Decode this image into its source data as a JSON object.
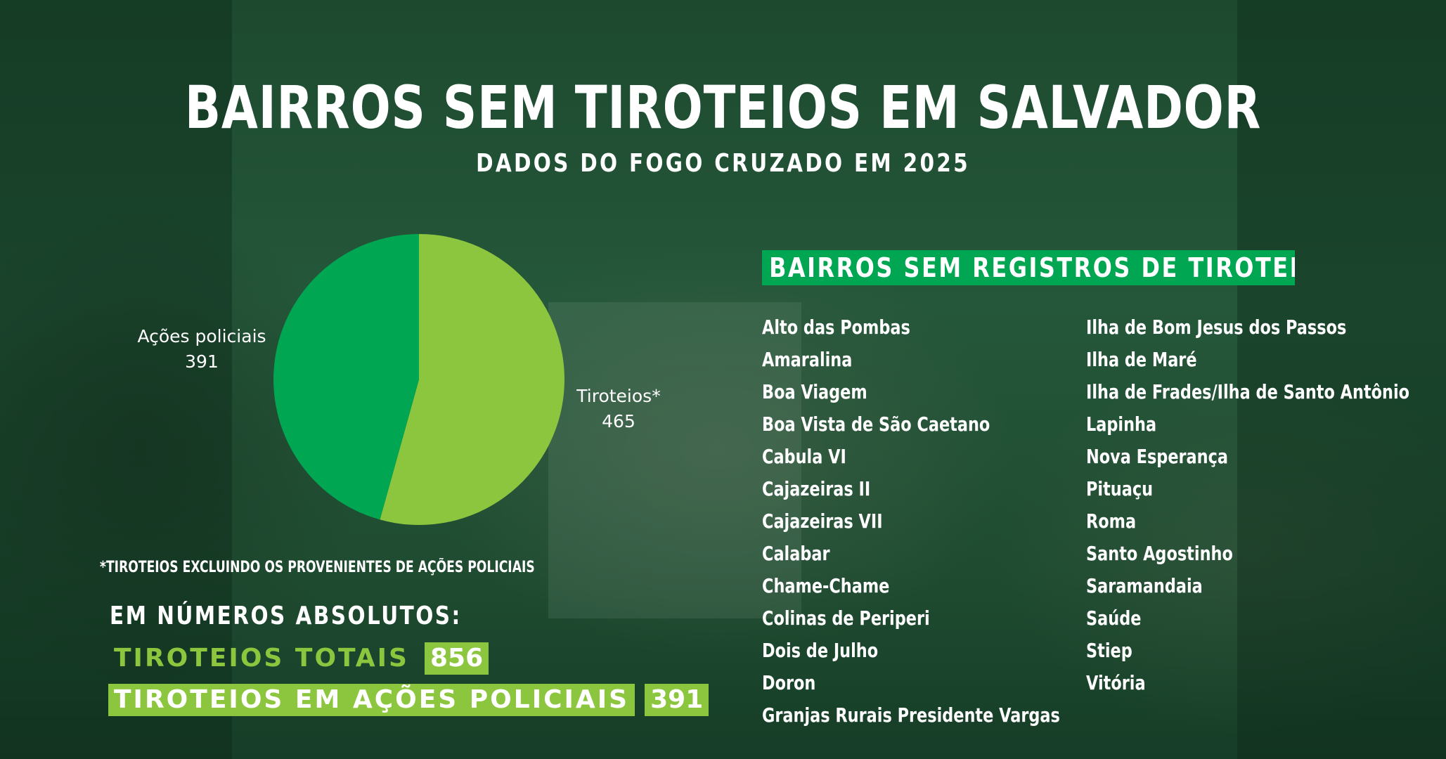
{
  "title": "BAIRROS SEM TIROTEIOS EM SALVADOR",
  "subtitle": "DADOS DO FOGO CRUZADO EM 2025",
  "colors": {
    "dark_green": "#00a651",
    "light_green": "#8cc63f",
    "text": "#ffffff"
  },
  "chart_data": {
    "type": "pie",
    "slices": [
      {
        "label": "Tiroteios*",
        "value": 465,
        "color": "#8cc63f"
      },
      {
        "label": "Ações policiais",
        "value": 391,
        "color": "#00a651"
      }
    ]
  },
  "footnote": "*TIROTEIOS EXCLUINDO OS PROVENIENTES DE AÇÕES POLICIAIS",
  "absolute": {
    "heading": "EM NÚMEROS ABSOLUTOS:",
    "rows": [
      {
        "label": "TIROTEIOS TOTAIS",
        "value": "856"
      },
      {
        "label": "TIROTEIOS EM AÇÕES POLICIAIS",
        "value": "391"
      }
    ]
  },
  "neighborhoods": {
    "heading": "BAIRROS SEM REGISTROS DE TIROTEIOS",
    "col1": [
      "Alto das Pombas",
      "Amaralina",
      "Boa Viagem",
      "Boa Vista de São Caetano",
      "Cabula VI",
      "Cajazeiras II",
      "Cajazeiras VII",
      "Calabar",
      "Chame-Chame",
      "Colinas de Periperi",
      "Dois de Julho",
      "Doron",
      "Granjas Rurais Presidente Vargas"
    ],
    "col2": [
      "Ilha de Bom Jesus dos Passos",
      "Ilha de Maré",
      "Ilha de Frades/Ilha de Santo Antônio",
      "Lapinha",
      "Nova Esperança",
      "Pituaçu",
      "Roma",
      "Santo Agostinho",
      "Saramandaia",
      "Saúde",
      "Stiep",
      "Vitória"
    ]
  }
}
